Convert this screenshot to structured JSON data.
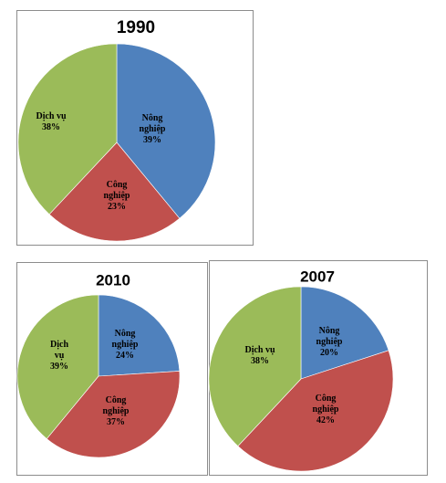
{
  "chart_data": [
    {
      "type": "pie",
      "title": "1990",
      "slices": [
        {
          "label": "Nông nghiệp",
          "value": 39,
          "value_label": "39%",
          "color": "#4f81bd"
        },
        {
          "label": "Công nghiệp",
          "value": 23,
          "value_label": "23%",
          "color": "#c0504d"
        },
        {
          "label": "Dịch vụ",
          "value": 38,
          "value_label": "38%",
          "color": "#9bbb59"
        }
      ],
      "legend": "none"
    },
    {
      "type": "pie",
      "title": "2010",
      "slices": [
        {
          "label": "Nông nghiệp",
          "value": 24,
          "value_label": "24%",
          "color": "#4f81bd"
        },
        {
          "label": "Công nghiệp",
          "value": 37,
          "value_label": "37%",
          "color": "#c0504d"
        },
        {
          "label": "Dịch vụ",
          "value": 39,
          "value_label": "39%",
          "color": "#9bbb59"
        }
      ],
      "legend": "none"
    },
    {
      "type": "pie",
      "title": "2007",
      "slices": [
        {
          "label": "Nông nghiệp",
          "value": 20,
          "value_label": "20%",
          "color": "#4f81bd"
        },
        {
          "label": "Công nghiệp",
          "value": 42,
          "value_label": "42%",
          "color": "#c0504d"
        },
        {
          "label": "Dịch vụ",
          "value": 38,
          "value_label": "38%",
          "color": "#9bbb59"
        }
      ],
      "legend": "none"
    }
  ]
}
